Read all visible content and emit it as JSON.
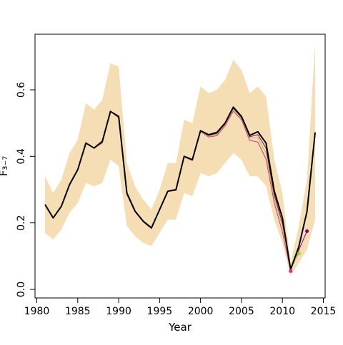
{
  "chart_data": {
    "type": "line",
    "title": "",
    "xlabel": "Year",
    "ylabel": "F₃₋₇",
    "xlim": [
      1980,
      2015
    ],
    "ylim": [
      0,
      0.7
    ],
    "xticks": [
      1980,
      1985,
      1990,
      1995,
      2000,
      2005,
      2010,
      2015
    ],
    "yticks": [
      0.0,
      0.2,
      0.4,
      0.6
    ],
    "ytick_labels": [
      "0.0",
      "0.2",
      "0.4",
      "0.6"
    ],
    "grid": false,
    "legend": "none",
    "band": {
      "color": "#f5deb3",
      "x": [
        1981,
        1982,
        1983,
        1984,
        1985,
        1986,
        1987,
        1988,
        1989,
        1990,
        1991,
        1992,
        1993,
        1994,
        1995,
        1996,
        1997,
        1998,
        1999,
        2000,
        2001,
        2002,
        2003,
        2004,
        2005,
        2006,
        2007,
        2008,
        2009,
        2010,
        2011,
        2012,
        2013,
        2014
      ],
      "lower": [
        0.17,
        0.15,
        0.18,
        0.23,
        0.26,
        0.32,
        0.31,
        0.32,
        0.39,
        0.37,
        0.19,
        0.16,
        0.14,
        0.13,
        0.17,
        0.21,
        0.21,
        0.29,
        0.28,
        0.35,
        0.34,
        0.35,
        0.38,
        0.41,
        0.39,
        0.34,
        0.34,
        0.31,
        0.21,
        0.14,
        0.04,
        0.08,
        0.12,
        0.21
      ],
      "upper": [
        0.34,
        0.29,
        0.33,
        0.41,
        0.45,
        0.56,
        0.54,
        0.57,
        0.68,
        0.67,
        0.38,
        0.31,
        0.27,
        0.24,
        0.3,
        0.38,
        0.38,
        0.51,
        0.5,
        0.61,
        0.59,
        0.6,
        0.63,
        0.69,
        0.66,
        0.59,
        0.61,
        0.58,
        0.39,
        0.29,
        0.08,
        0.19,
        0.33,
        0.74
      ]
    },
    "series": [
      {
        "color": "#000000",
        "width": 2,
        "x": [
          1981,
          1982,
          1983,
          1984,
          1985,
          1986,
          1987,
          1988,
          1989,
          1990,
          1991,
          1992,
          1993,
          1994,
          1995,
          1996,
          1997,
          1998,
          1999,
          2000,
          2001,
          2002,
          2003,
          2004,
          2005,
          2006,
          2007,
          2008,
          2009,
          2010,
          2011,
          2012,
          2013,
          2014
        ],
        "values": [
          0.255,
          0.215,
          0.25,
          0.315,
          0.36,
          0.44,
          0.425,
          0.445,
          0.535,
          0.52,
          0.29,
          0.235,
          0.205,
          0.185,
          0.24,
          0.295,
          0.3,
          0.4,
          0.39,
          0.477,
          0.465,
          0.472,
          0.5,
          0.548,
          0.52,
          0.463,
          0.474,
          0.44,
          0.296,
          0.215,
          0.06,
          0.128,
          0.234,
          0.472
        ]
      },
      {
        "color": "#e8288c",
        "width": 1,
        "x": [
          1981,
          1982,
          1983,
          1984,
          1985,
          1986,
          1987,
          1988,
          1989,
          1990,
          1991,
          1992,
          1993,
          1994,
          1995,
          1996,
          1997,
          1998,
          1999,
          2000,
          2001,
          2002,
          2003,
          2004,
          2005,
          2006,
          2007,
          2008,
          2009,
          2010,
          2011
        ],
        "values": [
          0.255,
          0.215,
          0.25,
          0.315,
          0.36,
          0.44,
          0.425,
          0.44,
          0.535,
          0.515,
          0.285,
          0.233,
          0.203,
          0.183,
          0.24,
          0.295,
          0.297,
          0.398,
          0.387,
          0.475,
          0.458,
          0.462,
          0.492,
          0.536,
          0.51,
          0.448,
          0.443,
          0.392,
          0.26,
          0.173,
          0.055
        ]
      },
      {
        "color": "#9acd32",
        "width": 1,
        "x": [
          1981,
          1982,
          1983,
          1984,
          1985,
          1986,
          1987,
          1988,
          1989,
          1990,
          1991,
          1992,
          1993,
          1994,
          1995,
          1996,
          1997,
          1998,
          1999,
          2000,
          2001,
          2002,
          2003,
          2004,
          2005,
          2006,
          2007,
          2008,
          2009,
          2010,
          2011,
          2012
        ],
        "values": [
          0.255,
          0.215,
          0.25,
          0.315,
          0.36,
          0.44,
          0.425,
          0.442,
          0.535,
          0.517,
          0.287,
          0.234,
          0.204,
          0.184,
          0.24,
          0.295,
          0.298,
          0.399,
          0.388,
          0.476,
          0.461,
          0.466,
          0.496,
          0.542,
          0.514,
          0.455,
          0.456,
          0.41,
          0.272,
          0.19,
          0.062,
          0.108
        ]
      },
      {
        "color": "#800080",
        "width": 1,
        "x": [
          1981,
          1982,
          1983,
          1984,
          1985,
          1986,
          1987,
          1988,
          1989,
          1990,
          1991,
          1992,
          1993,
          1994,
          1995,
          1996,
          1997,
          1998,
          1999,
          2000,
          2001,
          2002,
          2003,
          2004,
          2005,
          2006,
          2007,
          2008,
          2009,
          2010,
          2011,
          2012,
          2013
        ],
        "values": [
          0.255,
          0.215,
          0.25,
          0.315,
          0.36,
          0.44,
          0.425,
          0.443,
          0.535,
          0.518,
          0.288,
          0.234,
          0.204,
          0.184,
          0.24,
          0.295,
          0.299,
          0.399,
          0.389,
          0.476,
          0.463,
          0.469,
          0.498,
          0.545,
          0.517,
          0.459,
          0.465,
          0.425,
          0.284,
          0.2,
          0.064,
          0.118,
          0.175
        ]
      }
    ],
    "endpoints": [
      {
        "x": 2011,
        "y": 0.055,
        "color": "#e8288c"
      },
      {
        "x": 2012,
        "y": 0.108,
        "color": "#9acd32"
      },
      {
        "x": 2013,
        "y": 0.175,
        "color": "#800080"
      }
    ]
  }
}
